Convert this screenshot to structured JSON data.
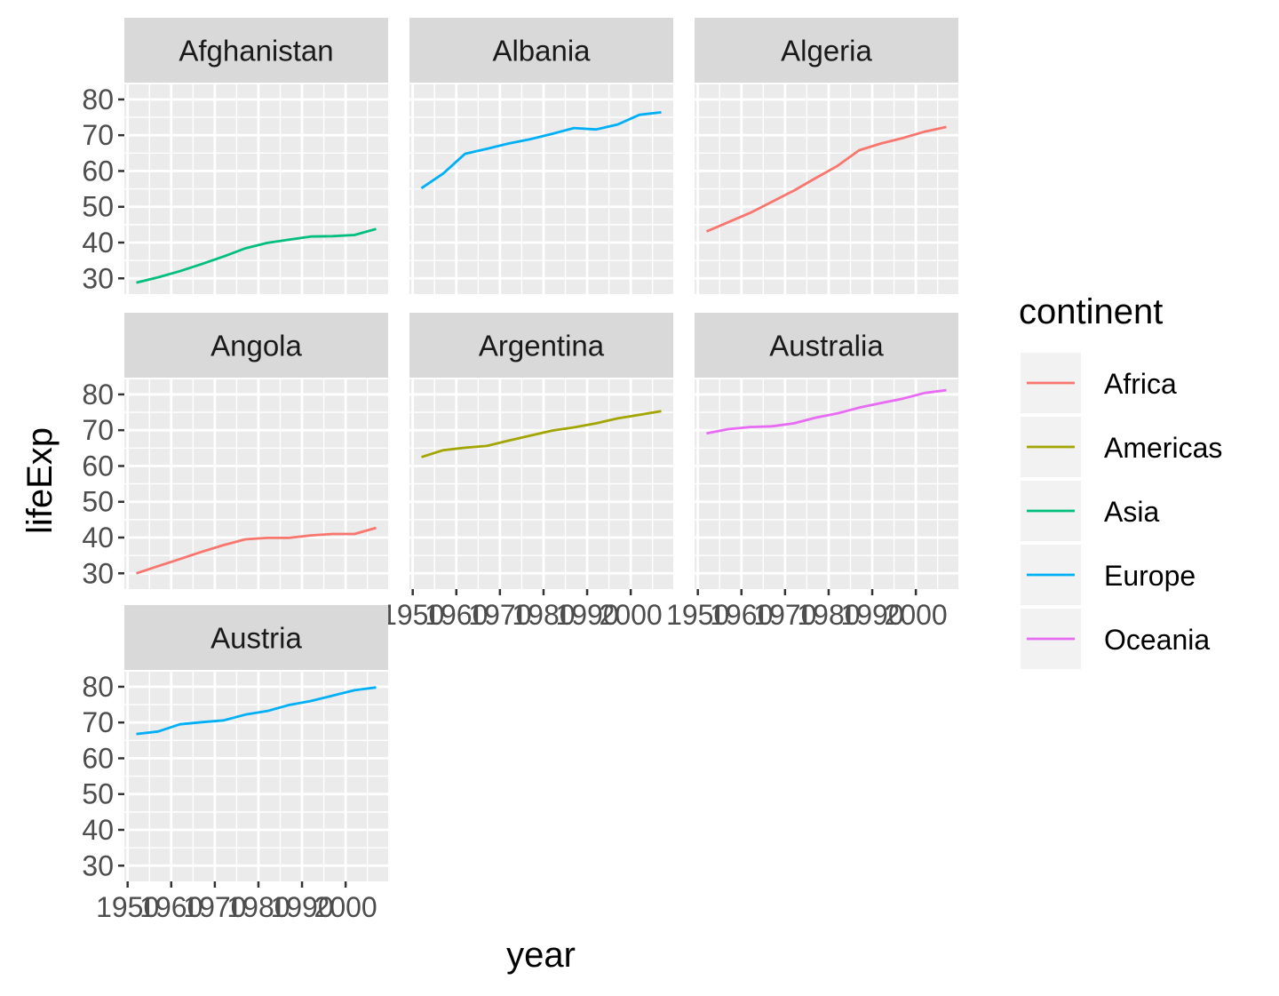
{
  "chart_data": {
    "type": "line",
    "xlabel": "year",
    "ylabel": "lifeExp",
    "x": [
      1952,
      1957,
      1962,
      1967,
      1972,
      1977,
      1982,
      1987,
      1992,
      1997,
      2002,
      2007
    ],
    "xlim": [
      1949.25,
      2009.75
    ],
    "ylim": [
      25.6,
      84.2
    ],
    "x_ticks": [
      "1950",
      "1960",
      "1970",
      "1980",
      "1990",
      "2000"
    ],
    "y_ticks": [
      "30",
      "40",
      "50",
      "60",
      "70",
      "80"
    ],
    "grid": true,
    "legend": {
      "title": "continent",
      "position": "right",
      "entries": [
        {
          "label": "Africa",
          "color": "#F8766D"
        },
        {
          "label": "Americas",
          "color": "#A3A500"
        },
        {
          "label": "Asia",
          "color": "#00BF7D"
        },
        {
          "label": "Europe",
          "color": "#00B0F6"
        },
        {
          "label": "Oceania",
          "color": "#E76BF3"
        }
      ]
    },
    "facets": [
      {
        "name": "Afghanistan",
        "continent": "Asia",
        "values": [
          28.8,
          30.3,
          32.0,
          34.0,
          36.1,
          38.4,
          39.9,
          40.8,
          41.7,
          41.8,
          42.1,
          43.8
        ]
      },
      {
        "name": "Albania",
        "continent": "Europe",
        "values": [
          55.2,
          59.3,
          64.8,
          66.2,
          67.7,
          68.9,
          70.4,
          72.0,
          71.6,
          73.0,
          75.7,
          76.4
        ]
      },
      {
        "name": "Algeria",
        "continent": "Africa",
        "values": [
          43.1,
          45.7,
          48.3,
          51.4,
          54.5,
          58.0,
          61.4,
          65.8,
          67.7,
          69.2,
          71.0,
          72.3
        ]
      },
      {
        "name": "Angola",
        "continent": "Africa",
        "values": [
          30.0,
          32.0,
          34.0,
          36.0,
          37.9,
          39.5,
          39.9,
          39.9,
          40.6,
          41.0,
          41.0,
          42.7
        ]
      },
      {
        "name": "Argentina",
        "continent": "Americas",
        "values": [
          62.5,
          64.4,
          65.1,
          65.6,
          67.1,
          68.5,
          69.9,
          70.8,
          71.9,
          73.3,
          74.3,
          75.3
        ]
      },
      {
        "name": "Australia",
        "continent": "Oceania",
        "values": [
          69.1,
          70.3,
          70.9,
          71.1,
          71.9,
          73.5,
          74.7,
          76.3,
          77.6,
          78.8,
          80.4,
          81.2
        ]
      },
      {
        "name": "Austria",
        "continent": "Europe",
        "values": [
          66.8,
          67.5,
          69.5,
          70.1,
          70.6,
          72.2,
          73.2,
          74.9,
          76.0,
          77.5,
          79.0,
          79.8
        ]
      }
    ]
  }
}
